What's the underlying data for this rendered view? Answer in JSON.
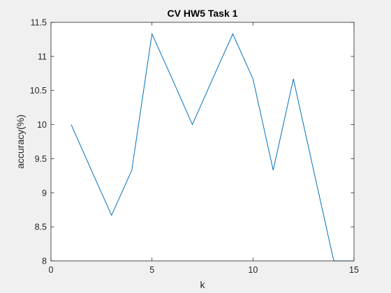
{
  "chart_data": {
    "type": "line",
    "title": "CV HW5 Task 1",
    "xlabel": "k",
    "ylabel": "accuracy(%)",
    "xlim": [
      0,
      15
    ],
    "ylim": [
      8,
      11.5
    ],
    "xticks": [
      0,
      5,
      10,
      15
    ],
    "yticks": [
      8,
      8.5,
      9,
      9.5,
      10,
      10.5,
      11,
      11.5
    ],
    "xtick_labels": [
      "0",
      "5",
      "10",
      "15"
    ],
    "ytick_labels": [
      "8",
      "8.5",
      "9",
      "9.5",
      "10",
      "10.5",
      "11",
      "11.5"
    ],
    "grid": false,
    "series": [
      {
        "color": "#0072BD",
        "x": [
          1,
          2,
          3,
          4,
          5,
          6,
          7,
          8,
          9,
          10,
          11,
          12,
          13,
          14,
          15
        ],
        "y": [
          10.0,
          9.33,
          8.67,
          9.33,
          11.33,
          10.67,
          10.0,
          10.67,
          11.33,
          10.67,
          9.33,
          10.67,
          9.33,
          8.0,
          8.0
        ]
      }
    ]
  }
}
